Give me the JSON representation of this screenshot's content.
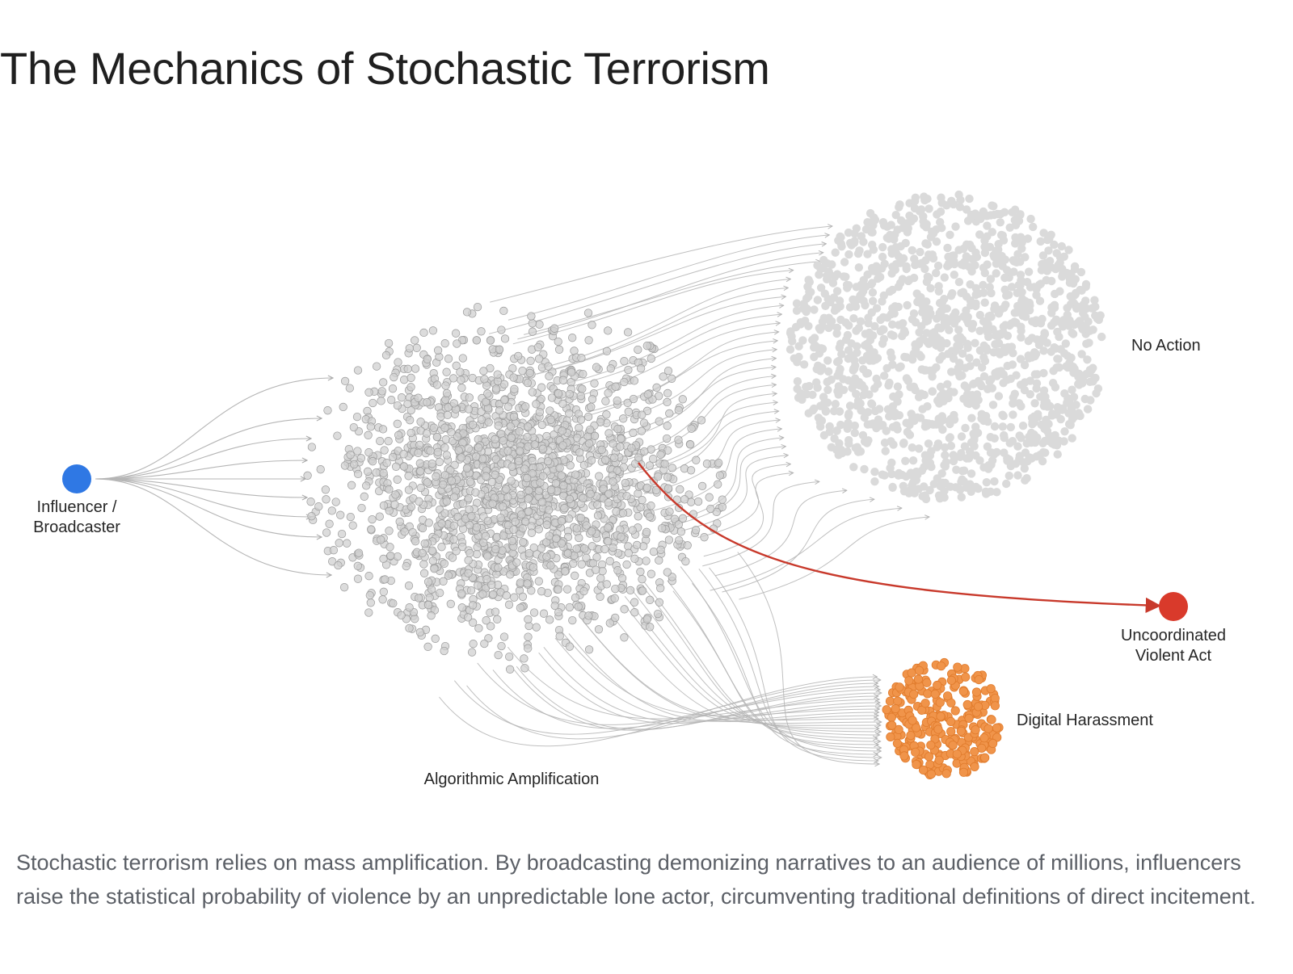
{
  "title": "The Mechanics of Stochastic Terrorism",
  "diagram": {
    "nodes": {
      "source": {
        "label_lines": [
          "Influencer /",
          "Broadcaster"
        ],
        "color": "#2f78e4"
      },
      "amplification": {
        "label": "Algorithmic Amplification",
        "color": "#d0d0d0"
      },
      "no_action": {
        "label": "No Action",
        "color": "#dadada"
      },
      "harassment": {
        "label": "Digital Harassment",
        "color": "#f0944a"
      },
      "violent_act": {
        "label_lines": [
          "Uncoordinated",
          "Violent Act"
        ],
        "color": "#d93a2b"
      }
    },
    "edges": [
      {
        "from": "source",
        "to": "amplification",
        "color": "#b5b5b5"
      },
      {
        "from": "amplification",
        "to": "no_action",
        "color": "#b5b5b5"
      },
      {
        "from": "amplification",
        "to": "harassment",
        "color": "#b5b5b5"
      },
      {
        "from": "amplification",
        "to": "violent_act",
        "color": "#c8392b"
      }
    ]
  },
  "caption": "Stochastic terrorism relies on mass amplification. By broadcasting demonizing narratives to an audience of millions, influencers raise the statistical probability of violence by an unpredictable lone actor, circumventing traditional definitions of direct incitement."
}
